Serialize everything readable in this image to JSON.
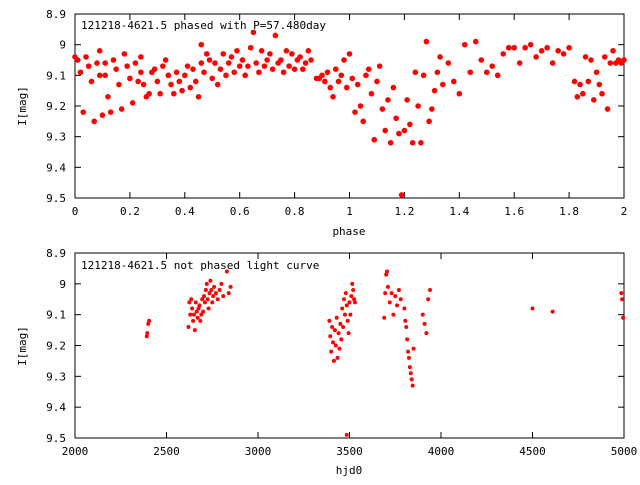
{
  "colors": {
    "points": "#ff0000",
    "axes": "#000000",
    "background": "#ffffff"
  },
  "chart_data": [
    {
      "type": "scatter",
      "title": "121218-4621.5 phased with P=57.480day",
      "xlabel": "phase",
      "ylabel": "I[mag]",
      "xlim": [
        0,
        2
      ],
      "ylim": [
        8.9,
        9.5
      ],
      "y_inverted": true,
      "grid": false,
      "xticks": [
        "0",
        "0.2",
        "0.4",
        "0.6",
        "0.8",
        "1",
        "1.2",
        "1.4",
        "1.6",
        "1.8",
        "2"
      ],
      "yticks": [
        "8.9",
        "9",
        "9.1",
        "9.2",
        "9.3",
        "9.4",
        "9.5"
      ],
      "points": [
        [
          0.0,
          9.04
        ],
        [
          0.01,
          9.05
        ],
        [
          0.02,
          9.09
        ],
        [
          0.03,
          9.22
        ],
        [
          0.04,
          9.04
        ],
        [
          0.05,
          9.07
        ],
        [
          0.06,
          9.12
        ],
        [
          0.07,
          9.25
        ],
        [
          0.08,
          9.06
        ],
        [
          0.09,
          9.1
        ],
        [
          0.09,
          9.02
        ],
        [
          0.1,
          9.23
        ],
        [
          0.11,
          9.06
        ],
        [
          0.11,
          9.1
        ],
        [
          0.12,
          9.17
        ],
        [
          0.13,
          9.22
        ],
        [
          0.14,
          9.05
        ],
        [
          0.15,
          9.08
        ],
        [
          0.16,
          9.13
        ],
        [
          0.17,
          9.21
        ],
        [
          0.18,
          9.03
        ],
        [
          0.19,
          9.07
        ],
        [
          0.2,
          9.11
        ],
        [
          0.21,
          9.19
        ],
        [
          0.22,
          9.06
        ],
        [
          0.23,
          9.12
        ],
        [
          0.24,
          9.09
        ],
        [
          0.24,
          9.04
        ],
        [
          0.25,
          9.13
        ],
        [
          0.26,
          9.17
        ],
        [
          0.27,
          9.16
        ],
        [
          0.28,
          9.09
        ],
        [
          0.29,
          9.08
        ],
        [
          0.3,
          9.12
        ],
        [
          0.31,
          9.16
        ],
        [
          0.32,
          9.07
        ],
        [
          0.33,
          9.05
        ],
        [
          0.34,
          9.1
        ],
        [
          0.35,
          9.13
        ],
        [
          0.36,
          9.16
        ],
        [
          0.37,
          9.09
        ],
        [
          0.38,
          9.12
        ],
        [
          0.39,
          9.15
        ],
        [
          0.4,
          9.1
        ],
        [
          0.41,
          9.07
        ],
        [
          0.42,
          9.14
        ],
        [
          0.43,
          9.08
        ],
        [
          0.44,
          9.12
        ],
        [
          0.45,
          9.17
        ],
        [
          0.46,
          9.0
        ],
        [
          0.46,
          9.06
        ],
        [
          0.47,
          9.09
        ],
        [
          0.48,
          9.03
        ],
        [
          0.49,
          9.05
        ],
        [
          0.5,
          9.11
        ],
        [
          0.51,
          9.06
        ],
        [
          0.52,
          9.13
        ],
        [
          0.53,
          9.08
        ],
        [
          0.54,
          9.03
        ],
        [
          0.55,
          9.1
        ],
        [
          0.56,
          9.06
        ],
        [
          0.57,
          9.04
        ],
        [
          0.58,
          9.09
        ],
        [
          0.59,
          9.02
        ],
        [
          0.6,
          9.07
        ],
        [
          0.61,
          9.05
        ],
        [
          0.62,
          9.1
        ],
        [
          0.63,
          9.07
        ],
        [
          0.64,
          9.01
        ],
        [
          0.65,
          8.96
        ],
        [
          0.66,
          9.06
        ],
        [
          0.67,
          9.09
        ],
        [
          0.68,
          9.02
        ],
        [
          0.69,
          9.07
        ],
        [
          0.7,
          9.05
        ],
        [
          0.71,
          9.03
        ],
        [
          0.72,
          9.08
        ],
        [
          0.73,
          8.97
        ],
        [
          0.74,
          9.06
        ],
        [
          0.75,
          9.05
        ],
        [
          0.76,
          9.09
        ],
        [
          0.77,
          9.02
        ],
        [
          0.78,
          9.07
        ],
        [
          0.79,
          9.03
        ],
        [
          0.8,
          9.08
        ],
        [
          0.81,
          9.05
        ],
        [
          0.82,
          9.04
        ],
        [
          0.83,
          9.08
        ],
        [
          0.84,
          9.06
        ],
        [
          0.85,
          9.02
        ],
        [
          0.86,
          9.05
        ],
        [
          0.88,
          9.11
        ],
        [
          0.89,
          9.11
        ],
        [
          0.9,
          9.1
        ],
        [
          0.91,
          9.12
        ],
        [
          0.92,
          9.09
        ],
        [
          0.93,
          9.14
        ],
        [
          0.94,
          9.17
        ],
        [
          0.95,
          9.08
        ],
        [
          0.96,
          9.12
        ],
        [
          0.97,
          9.1
        ],
        [
          0.98,
          9.05
        ],
        [
          0.99,
          9.14
        ],
        [
          1.0,
          9.03
        ],
        [
          1.01,
          9.11
        ],
        [
          1.02,
          9.22
        ],
        [
          1.03,
          9.13
        ],
        [
          1.04,
          9.2
        ],
        [
          1.05,
          9.25
        ],
        [
          1.06,
          9.1
        ],
        [
          1.07,
          9.08
        ],
        [
          1.08,
          9.16
        ],
        [
          1.09,
          9.31
        ],
        [
          1.1,
          9.12
        ],
        [
          1.11,
          9.07
        ],
        [
          1.12,
          9.21
        ],
        [
          1.13,
          9.28
        ],
        [
          1.14,
          9.18
        ],
        [
          1.15,
          9.32
        ],
        [
          1.16,
          9.14
        ],
        [
          1.17,
          9.24
        ],
        [
          1.18,
          9.29
        ],
        [
          1.19,
          9.49
        ],
        [
          1.2,
          9.28
        ],
        [
          1.21,
          9.18
        ],
        [
          1.22,
          9.26
        ],
        [
          1.23,
          9.32
        ],
        [
          1.24,
          9.09
        ],
        [
          1.25,
          9.2
        ],
        [
          1.26,
          9.32
        ],
        [
          1.27,
          9.1
        ],
        [
          1.28,
          8.99
        ],
        [
          1.29,
          9.25
        ],
        [
          1.3,
          9.21
        ],
        [
          1.31,
          9.15
        ],
        [
          1.32,
          9.09
        ],
        [
          1.33,
          9.04
        ],
        [
          1.34,
          9.13
        ],
        [
          1.36,
          9.06
        ],
        [
          1.38,
          9.12
        ],
        [
          1.4,
          9.16
        ],
        [
          1.42,
          9.0
        ],
        [
          1.44,
          9.09
        ],
        [
          1.46,
          8.99
        ],
        [
          1.48,
          9.05
        ],
        [
          1.5,
          9.09
        ],
        [
          1.52,
          9.07
        ],
        [
          1.54,
          9.1
        ],
        [
          1.56,
          9.03
        ],
        [
          1.58,
          9.01
        ],
        [
          1.6,
          9.01
        ],
        [
          1.62,
          9.06
        ],
        [
          1.64,
          9.01
        ],
        [
          1.66,
          9.0
        ],
        [
          1.68,
          9.04
        ],
        [
          1.7,
          9.02
        ],
        [
          1.72,
          9.01
        ],
        [
          1.74,
          9.06
        ],
        [
          1.76,
          9.02
        ],
        [
          1.78,
          9.03
        ],
        [
          1.8,
          9.01
        ],
        [
          1.82,
          9.12
        ],
        [
          1.83,
          9.17
        ],
        [
          1.84,
          9.13
        ],
        [
          1.85,
          9.16
        ],
        [
          1.86,
          9.04
        ],
        [
          1.87,
          9.12
        ],
        [
          1.88,
          9.05
        ],
        [
          1.89,
          9.18
        ],
        [
          1.9,
          9.09
        ],
        [
          1.91,
          9.13
        ],
        [
          1.92,
          9.16
        ],
        [
          1.93,
          9.04
        ],
        [
          1.94,
          9.21
        ],
        [
          1.95,
          9.06
        ],
        [
          1.96,
          9.02
        ],
        [
          1.97,
          9.06
        ],
        [
          1.98,
          9.05
        ],
        [
          1.99,
          9.06
        ],
        [
          2.0,
          9.05
        ]
      ]
    },
    {
      "type": "scatter",
      "title": "121218-4621.5 not phased light curve",
      "xlabel": "hjd0",
      "ylabel": "I[mag]",
      "xlim": [
        2000,
        5000
      ],
      "ylim": [
        8.9,
        9.5
      ],
      "y_inverted": true,
      "grid": false,
      "xticks": [
        "2000",
        "2500",
        "3000",
        "3500",
        "4000",
        "4500",
        "5000"
      ],
      "yticks": [
        "8.9",
        "9",
        "9.1",
        "9.2",
        "9.3",
        "9.4",
        "9.5"
      ],
      "points": [
        [
          2395,
          9.16
        ],
        [
          2400,
          9.13
        ],
        [
          2405,
          9.12
        ],
        [
          2392,
          9.17
        ],
        [
          2620,
          9.14
        ],
        [
          2625,
          9.06
        ],
        [
          2630,
          9.1
        ],
        [
          2635,
          9.05
        ],
        [
          2640,
          9.08
        ],
        [
          2645,
          9.12
        ],
        [
          2650,
          9.1
        ],
        [
          2655,
          9.15
        ],
        [
          2660,
          9.06
        ],
        [
          2665,
          9.09
        ],
        [
          2670,
          9.11
        ],
        [
          2675,
          9.08
        ],
        [
          2680,
          9.07
        ],
        [
          2685,
          9.12
        ],
        [
          2690,
          9.1
        ],
        [
          2695,
          9.05
        ],
        [
          2700,
          9.09
        ],
        [
          2705,
          9.04
        ],
        [
          2710,
          9.06
        ],
        [
          2715,
          9.02
        ],
        [
          2720,
          9.0
        ],
        [
          2725,
          9.05
        ],
        [
          2730,
          9.08
        ],
        [
          2735,
          9.03
        ],
        [
          2740,
          8.99
        ],
        [
          2745,
          9.02
        ],
        [
          2750,
          9.06
        ],
        [
          2755,
          9.04
        ],
        [
          2760,
          9.01
        ],
        [
          2770,
          9.03
        ],
        [
          2780,
          9.05
        ],
        [
          2790,
          9.02
        ],
        [
          2800,
          9.0
        ],
        [
          2810,
          9.04
        ],
        [
          2830,
          8.96
        ],
        [
          2840,
          9.03
        ],
        [
          2850,
          9.01
        ],
        [
          3390,
          9.12
        ],
        [
          3395,
          9.17
        ],
        [
          3400,
          9.22
        ],
        [
          3405,
          9.14
        ],
        [
          3410,
          9.19
        ],
        [
          3415,
          9.25
        ],
        [
          3420,
          9.15
        ],
        [
          3425,
          9.2
        ],
        [
          3430,
          9.11
        ],
        [
          3435,
          9.24
        ],
        [
          3440,
          9.16
        ],
        [
          3445,
          9.21
        ],
        [
          3450,
          9.13
        ],
        [
          3455,
          9.18
        ],
        [
          3460,
          9.08
        ],
        [
          3465,
          9.14
        ],
        [
          3470,
          9.05
        ],
        [
          3475,
          9.1
        ],
        [
          3480,
          9.03
        ],
        [
          3485,
          9.07
        ],
        [
          3490,
          9.12
        ],
        [
          3495,
          9.16
        ],
        [
          3500,
          9.06
        ],
        [
          3505,
          9.1
        ],
        [
          3510,
          9.04
        ],
        [
          3515,
          9.0
        ],
        [
          3520,
          9.02
        ],
        [
          3525,
          9.05
        ],
        [
          3530,
          9.06
        ],
        [
          3485,
          9.49
        ],
        [
          3690,
          9.11
        ],
        [
          3695,
          9.03
        ],
        [
          3700,
          8.97
        ],
        [
          3705,
          8.96
        ],
        [
          3710,
          9.01
        ],
        [
          3720,
          9.06
        ],
        [
          3730,
          9.03
        ],
        [
          3740,
          9.1
        ],
        [
          3750,
          9.04
        ],
        [
          3760,
          9.07
        ],
        [
          3770,
          9.02
        ],
        [
          3780,
          9.05
        ],
        [
          3800,
          9.08
        ],
        [
          3805,
          9.12
        ],
        [
          3810,
          9.14
        ],
        [
          3815,
          9.18
        ],
        [
          3820,
          9.22
        ],
        [
          3825,
          9.24
        ],
        [
          3830,
          9.27
        ],
        [
          3835,
          9.29
        ],
        [
          3840,
          9.31
        ],
        [
          3845,
          9.33
        ],
        [
          3850,
          9.21
        ],
        [
          3900,
          9.1
        ],
        [
          3910,
          9.13
        ],
        [
          3920,
          9.16
        ],
        [
          3930,
          9.05
        ],
        [
          3940,
          9.02
        ],
        [
          4500,
          9.08
        ],
        [
          4610,
          9.09
        ],
        [
          4985,
          9.03
        ],
        [
          4990,
          9.05
        ],
        [
          4995,
          9.11
        ]
      ]
    }
  ]
}
